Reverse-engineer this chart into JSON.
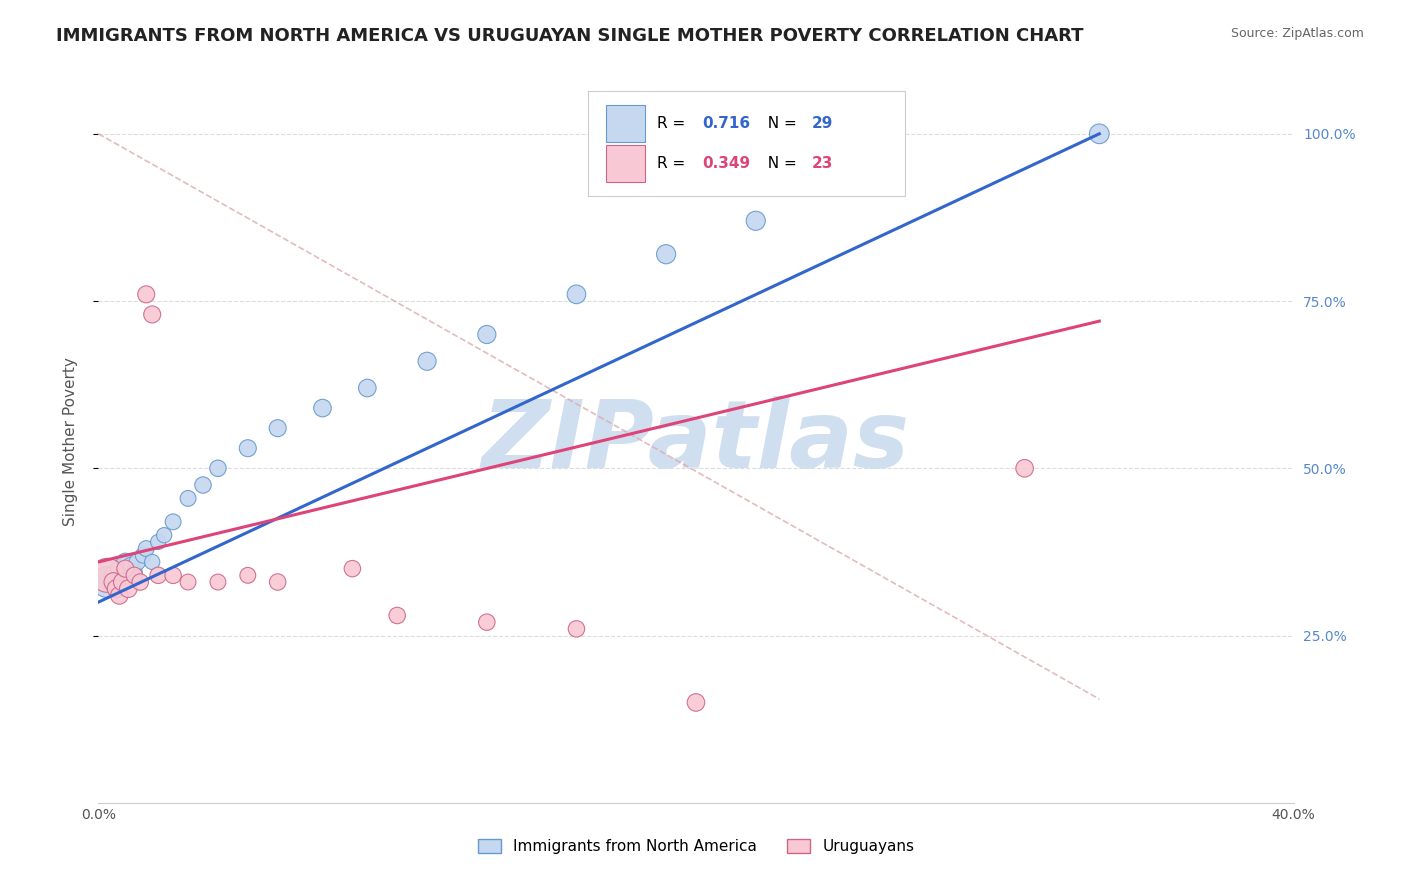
{
  "title": "IMMIGRANTS FROM NORTH AMERICA VS URUGUAYAN SINGLE MOTHER POVERTY CORRELATION CHART",
  "source": "Source: ZipAtlas.com",
  "ylabel": "Single Mother Poverty",
  "xlim": [
    0.0,
    0.4
  ],
  "ylim": [
    0.0,
    1.08
  ],
  "legend_R_blue": "0.716",
  "legend_N_blue": "29",
  "legend_R_pink": "0.349",
  "legend_N_pink": "23",
  "blue_scatter_x": [
    0.003,
    0.005,
    0.006,
    0.007,
    0.008,
    0.009,
    0.01,
    0.011,
    0.012,
    0.013,
    0.015,
    0.016,
    0.018,
    0.02,
    0.022,
    0.025,
    0.03,
    0.035,
    0.04,
    0.05,
    0.06,
    0.075,
    0.09,
    0.11,
    0.13,
    0.16,
    0.19,
    0.22,
    0.335
  ],
  "blue_scatter_y": [
    0.33,
    0.34,
    0.32,
    0.35,
    0.33,
    0.36,
    0.34,
    0.355,
    0.345,
    0.36,
    0.37,
    0.38,
    0.36,
    0.39,
    0.4,
    0.42,
    0.455,
    0.475,
    0.5,
    0.53,
    0.56,
    0.59,
    0.62,
    0.66,
    0.7,
    0.76,
    0.82,
    0.87,
    1.0
  ],
  "blue_sizes": [
    500,
    180,
    150,
    160,
    170,
    160,
    150,
    140,
    130,
    140,
    130,
    130,
    120,
    120,
    120,
    130,
    130,
    140,
    140,
    150,
    150,
    160,
    160,
    170,
    170,
    180,
    190,
    190,
    200
  ],
  "pink_scatter_x": [
    0.003,
    0.005,
    0.006,
    0.007,
    0.008,
    0.009,
    0.01,
    0.012,
    0.014,
    0.016,
    0.018,
    0.02,
    0.025,
    0.03,
    0.04,
    0.05,
    0.06,
    0.085,
    0.1,
    0.13,
    0.16,
    0.2,
    0.31
  ],
  "pink_scatter_y": [
    0.34,
    0.33,
    0.32,
    0.31,
    0.33,
    0.35,
    0.32,
    0.34,
    0.33,
    0.76,
    0.73,
    0.34,
    0.34,
    0.33,
    0.33,
    0.34,
    0.33,
    0.35,
    0.28,
    0.27,
    0.26,
    0.15,
    0.5
  ],
  "pink_sizes": [
    600,
    180,
    170,
    160,
    160,
    150,
    160,
    140,
    140,
    150,
    150,
    140,
    140,
    130,
    130,
    130,
    140,
    140,
    140,
    140,
    140,
    160,
    160
  ],
  "blue_line_x": [
    0.0,
    0.335
  ],
  "blue_line_y": [
    0.3,
    1.0
  ],
  "pink_line_x": [
    0.0,
    0.335
  ],
  "pink_line_y": [
    0.36,
    0.72
  ],
  "dash_line_x": [
    0.0,
    0.335
  ],
  "dash_line_y": [
    1.0,
    0.155
  ],
  "watermark": "ZIPatlas",
  "watermark_color": "#d0dff0",
  "background_color": "#ffffff",
  "blue_color": "#c5d8f0",
  "blue_edge_color": "#6699cc",
  "blue_line_color": "#3366cc",
  "pink_color": "#f8c8d4",
  "pink_edge_color": "#cc6688",
  "pink_line_color": "#dd4477",
  "grid_color": "#dddddd",
  "title_fontsize": 13,
  "axis_label_fontsize": 11,
  "tick_fontsize": 10
}
